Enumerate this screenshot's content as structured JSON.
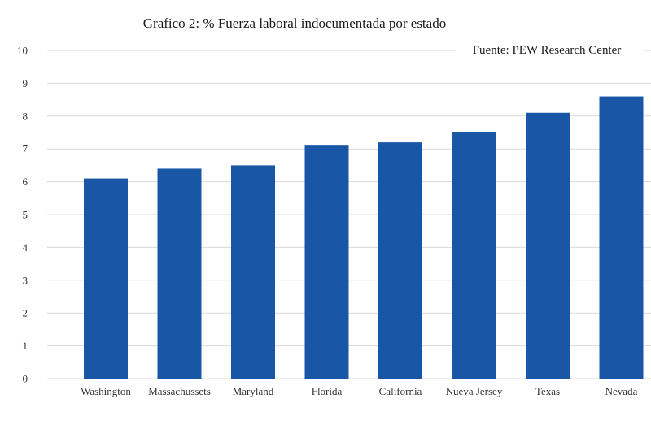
{
  "chart_data": {
    "type": "bar",
    "title": "Grafico 2: % Fuerza laboral indocumentada por estado",
    "source": "Fuente: PEW Research Center",
    "categories": [
      "Washington",
      "Massachussets",
      "Maryland",
      "Florida",
      "California",
      "Nueva Jersey",
      "Texas",
      "Nevada"
    ],
    "values": [
      6.1,
      6.4,
      6.5,
      7.1,
      7.2,
      7.5,
      8.1,
      8.6
    ],
    "xlabel": "",
    "ylabel": "",
    "ylim": [
      0,
      10
    ],
    "yticks": [
      0,
      1,
      2,
      3,
      4,
      5,
      6,
      7,
      8,
      9,
      10
    ],
    "grid": true,
    "legend": "none",
    "bar_color": "#1a56a6",
    "grid_color": "#d9d9d9"
  }
}
